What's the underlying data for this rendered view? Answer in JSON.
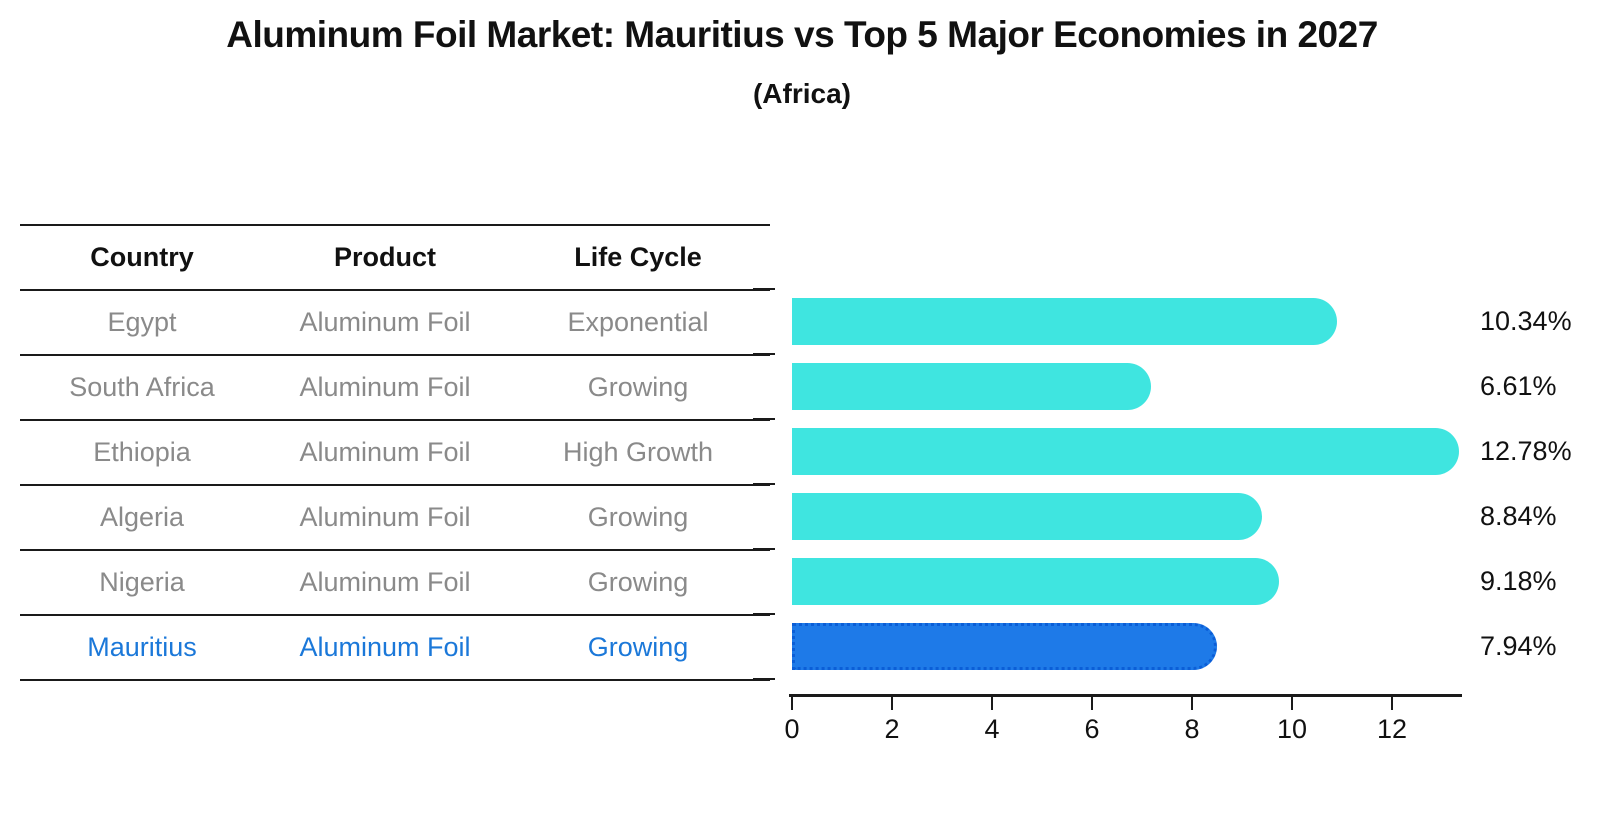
{
  "header": {
    "title": "Aluminum Foil Market: Mauritius vs Top 5 Major Economies in 2027",
    "subtitle": "(Africa)"
  },
  "table": {
    "headers": [
      "Country",
      "Product",
      "Life Cycle"
    ],
    "rows": [
      {
        "country": "Egypt",
        "product": "Aluminum Foil",
        "life_cycle": "Exponential",
        "highlight": false
      },
      {
        "country": "South Africa",
        "product": "Aluminum Foil",
        "life_cycle": "Growing",
        "highlight": false
      },
      {
        "country": "Ethiopia",
        "product": "Aluminum Foil",
        "life_cycle": "High Growth",
        "highlight": false
      },
      {
        "country": "Algeria",
        "product": "Aluminum Foil",
        "life_cycle": "Growing",
        "highlight": false
      },
      {
        "country": "Nigeria",
        "product": "Aluminum Foil",
        "life_cycle": "Growing",
        "highlight": false
      },
      {
        "country": "Mauritius",
        "product": "Aluminum Foil",
        "life_cycle": "Growing",
        "highlight": true
      }
    ]
  },
  "chart_data": {
    "type": "bar",
    "orientation": "horizontal",
    "title": "Aluminum Foil Market: Mauritius vs Top 5 Major Economies in 2027",
    "subtitle": "(Africa)",
    "categories": [
      "Egypt",
      "South Africa",
      "Ethiopia",
      "Algeria",
      "Nigeria",
      "Mauritius"
    ],
    "values": [
      10.34,
      6.61,
      12.78,
      8.84,
      9.18,
      7.94
    ],
    "value_labels": [
      "10.34%",
      "6.61%",
      "12.78%",
      "8.84%",
      "9.18%",
      "7.94%"
    ],
    "xlabel": "",
    "ylabel": "",
    "xlim": [
      0,
      13.4
    ],
    "xticks": [
      0,
      2,
      4,
      6,
      8,
      10,
      12
    ],
    "grid": false,
    "legend": false,
    "bar_color": "#3FE5E0",
    "highlight_color": "#1E7AE8",
    "highlight_border_color": "#0b5ed7",
    "highlight_index": 5
  },
  "colors": {
    "text_primary": "#111111",
    "text_secondary": "#8a8a8a",
    "highlight_text": "#1b78d9",
    "axis": "#1a1a1a",
    "background": "#ffffff"
  }
}
